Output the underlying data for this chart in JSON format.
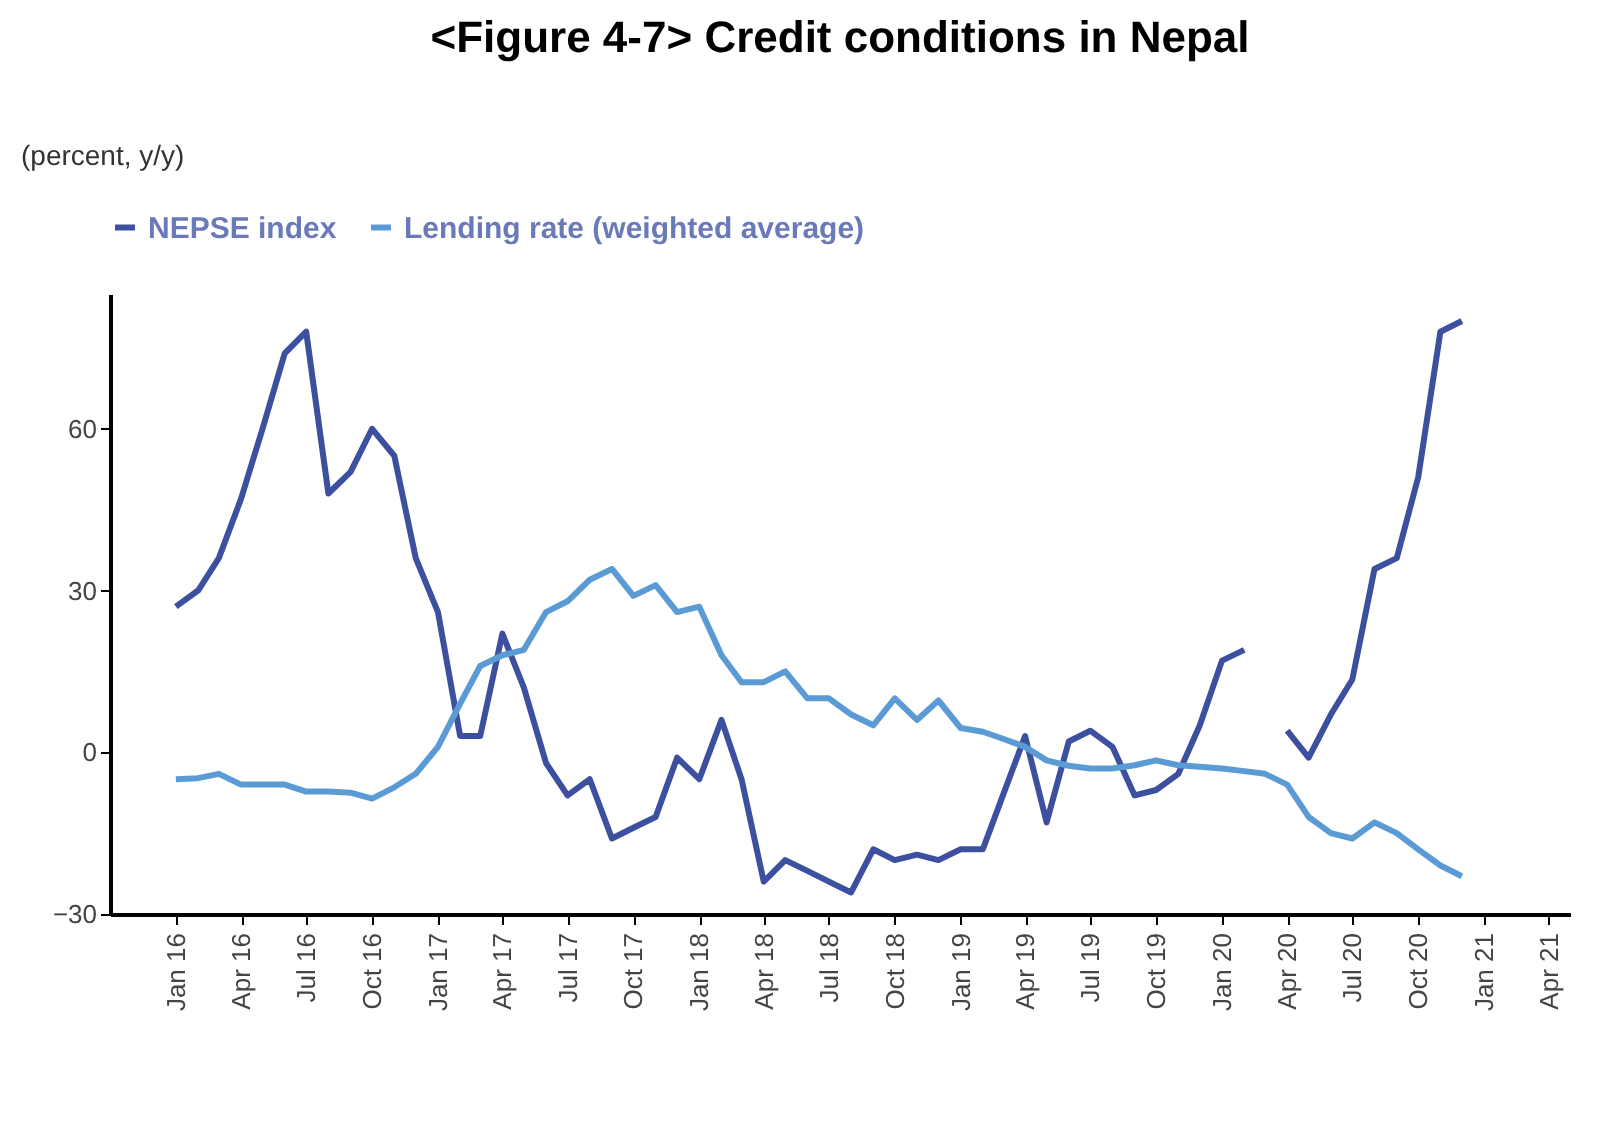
{
  "chart_data": {
    "type": "line",
    "title": "<Figure 4-7> Credit conditions in Nepal",
    "ylabel": "(percent, y/y)",
    "x": [
      "2016-01",
      "2016-02",
      "2016-03",
      "2016-04",
      "2016-05",
      "2016-06",
      "2016-07",
      "2016-08",
      "2016-09",
      "2016-10",
      "2016-11",
      "2016-12",
      "2017-01",
      "2017-02",
      "2017-03",
      "2017-04",
      "2017-05",
      "2017-06",
      "2017-07",
      "2017-08",
      "2017-09",
      "2017-10",
      "2017-11",
      "2017-12",
      "2018-01",
      "2018-02",
      "2018-03",
      "2018-04",
      "2018-05",
      "2018-06",
      "2018-07",
      "2018-08",
      "2018-09",
      "2018-10",
      "2018-11",
      "2018-12",
      "2019-01",
      "2019-02",
      "2019-03",
      "2019-04",
      "2019-05",
      "2019-06",
      "2019-07",
      "2019-08",
      "2019-09",
      "2019-10",
      "2019-11",
      "2019-12",
      "2020-01",
      "2020-02",
      "2020-03",
      "2020-04",
      "2020-05",
      "2020-06",
      "2020-07",
      "2020-08",
      "2020-09",
      "2020-10",
      "2020-11",
      "2020-12"
    ],
    "series": [
      {
        "name": "NEPSE index",
        "color": "#3d4f9f",
        "values": [
          27,
          30,
          36,
          47,
          60,
          74,
          78,
          48,
          52,
          60,
          55,
          36,
          26,
          3,
          3,
          22,
          12,
          -2,
          -8,
          -5,
          -16,
          -14,
          -12,
          -1,
          -5,
          6,
          -5,
          -24,
          -20,
          -22,
          -24,
          -26,
          -18,
          -20,
          -19,
          -20,
          -18,
          -18,
          -8,
          3,
          -13,
          2,
          4,
          1,
          -8,
          -7,
          -4,
          5,
          17,
          19,
          null,
          4,
          -1,
          7,
          13.5,
          34,
          36,
          51,
          78,
          80
        ]
      },
      {
        "name": "Lending rate (weighted average)",
        "color": "#5b9bd5",
        "values": [
          -5,
          -4.8,
          -4,
          -6,
          -6,
          -6,
          -7.3,
          -7.3,
          -7.5,
          -8.6,
          -6.5,
          -4,
          1,
          9,
          16,
          18,
          19,
          26,
          28,
          32,
          34,
          29,
          31,
          26,
          27,
          18,
          13,
          13,
          15,
          10,
          10,
          7,
          5,
          10,
          6,
          9.6,
          4.5,
          3.8,
          2.5,
          1,
          -1.5,
          -2.5,
          -3,
          -3,
          -2.4,
          -1.5,
          -2.4,
          -2.7,
          -3,
          -3.5,
          -4,
          -6,
          -12,
          -15,
          -16,
          -13,
          -15,
          -18,
          -21,
          -23
        ]
      }
    ],
    "xlim": [
      "2015-10",
      "2021-05"
    ],
    "xticks": [
      {
        "value": "2016-01",
        "label": "Jan 16"
      },
      {
        "value": "2016-04",
        "label": "Apr 16"
      },
      {
        "value": "2016-07",
        "label": "Jul 16"
      },
      {
        "value": "2016-10",
        "label": "Oct 16"
      },
      {
        "value": "2017-01",
        "label": "Jan 17"
      },
      {
        "value": "2017-04",
        "label": "Apr 17"
      },
      {
        "value": "2017-07",
        "label": "Jul 17"
      },
      {
        "value": "2017-10",
        "label": "Oct 17"
      },
      {
        "value": "2018-01",
        "label": "Jan 18"
      },
      {
        "value": "2018-04",
        "label": "Apr 18"
      },
      {
        "value": "2018-07",
        "label": "Jul 18"
      },
      {
        "value": "2018-10",
        "label": "Oct 18"
      },
      {
        "value": "2019-01",
        "label": "Jan 19"
      },
      {
        "value": "2019-04",
        "label": "Apr 19"
      },
      {
        "value": "2019-07",
        "label": "Jul 19"
      },
      {
        "value": "2019-10",
        "label": "Oct 19"
      },
      {
        "value": "2020-01",
        "label": "Jan 20"
      },
      {
        "value": "2020-04",
        "label": "Apr 20"
      },
      {
        "value": "2020-07",
        "label": "Jul 20"
      },
      {
        "value": "2020-10",
        "label": "Oct 20"
      },
      {
        "value": "2021-01",
        "label": "Jan 21"
      },
      {
        "value": "2021-04",
        "label": "Apr 21"
      }
    ],
    "ylim": [
      -30,
      85
    ],
    "yticks": [
      -30,
      0,
      30,
      60
    ],
    "grid": false,
    "legend": "top",
    "marker": "none",
    "line_style": "solid"
  }
}
